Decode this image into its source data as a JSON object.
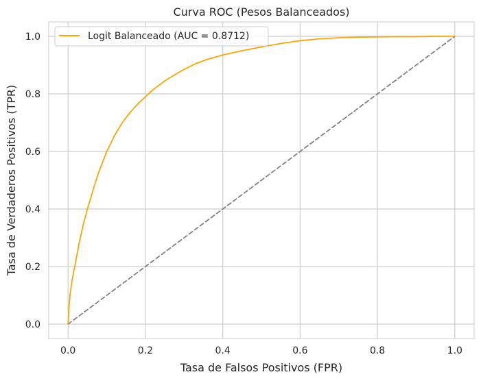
{
  "chart_data": {
    "type": "line",
    "title": "Curva ROC (Pesos Balanceados)",
    "xlabel": "Tasa de Falsos Positivos (FPR)",
    "ylabel": "Tasa de Verdaderos Positivos (TPR)",
    "xlim": [
      -0.05,
      1.05
    ],
    "ylim": [
      -0.05,
      1.05
    ],
    "x_ticks": [
      0.0,
      0.2,
      0.4,
      0.6,
      0.8,
      1.0
    ],
    "x_tick_labels": [
      "0.0",
      "0.2",
      "0.4",
      "0.6",
      "0.8",
      "1.0"
    ],
    "y_ticks": [
      0.0,
      0.2,
      0.4,
      0.6,
      0.8,
      1.0
    ],
    "y_tick_labels": [
      "0.0",
      "0.2",
      "0.4",
      "0.6",
      "0.8",
      "1.0"
    ],
    "grid": true,
    "legend_position": "top-left",
    "series": [
      {
        "name": "Logit Balanceado (AUC = 0.8712)",
        "color": "#FFA500",
        "style": "solid",
        "x": [
          0.0,
          0.002,
          0.005,
          0.01,
          0.02,
          0.03,
          0.04,
          0.05,
          0.06,
          0.07,
          0.08,
          0.09,
          0.1,
          0.12,
          0.14,
          0.16,
          0.18,
          0.2,
          0.22,
          0.25,
          0.28,
          0.3,
          0.33,
          0.36,
          0.4,
          0.45,
          0.5,
          0.55,
          0.6,
          0.65,
          0.7,
          0.75,
          0.8,
          0.85,
          0.9,
          0.95,
          1.0
        ],
        "y": [
          0.0,
          0.05,
          0.1,
          0.15,
          0.22,
          0.29,
          0.35,
          0.4,
          0.445,
          0.49,
          0.53,
          0.565,
          0.6,
          0.655,
          0.7,
          0.735,
          0.765,
          0.79,
          0.815,
          0.845,
          0.87,
          0.885,
          0.905,
          0.92,
          0.935,
          0.95,
          0.963,
          0.975,
          0.985,
          0.991,
          0.995,
          0.997,
          0.998,
          0.999,
          0.999,
          1.0,
          1.0
        ]
      },
      {
        "name": "",
        "color": "#808080",
        "style": "dashed",
        "x": [
          0.0,
          1.0
        ],
        "y": [
          0.0,
          1.0
        ]
      }
    ]
  }
}
